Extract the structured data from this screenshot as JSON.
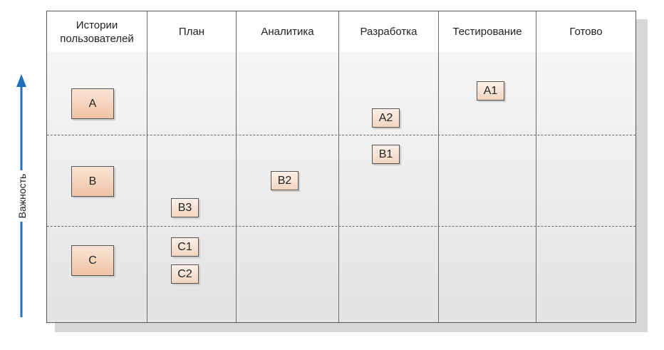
{
  "columns": [
    "Истории\nпользователей",
    "План",
    "Аналитика",
    "Разработка",
    "Тестирование",
    "Готово"
  ],
  "stories": [
    "A",
    "B",
    "C"
  ],
  "cards": {
    "b3": "B3",
    "c1": "C1",
    "c2": "C2",
    "b2": "B2",
    "a2": "A2",
    "b1": "B1",
    "a1": "A1"
  },
  "axis_label": "Важность",
  "colors": {
    "arrow": "#1f6fbf",
    "card_fill": "#f5d9c6",
    "border": "#5a5a5a"
  }
}
